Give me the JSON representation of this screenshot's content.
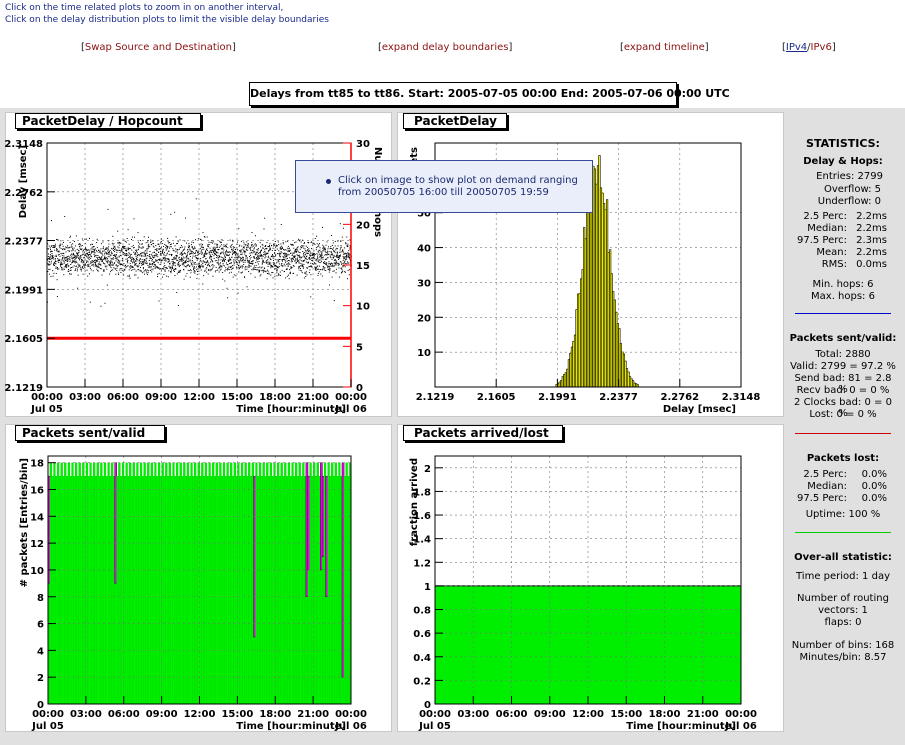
{
  "hints": [
    "Click on the time related plots to zoom in on another interval,",
    "Click on the delay distribution plots to limit the visible delay boundaries"
  ],
  "links": {
    "swap": "Swap Source and Destination",
    "expand_delay": "expand delay boundaries",
    "expand_timeline": "expand timeline",
    "ipv4": "IPv4",
    "ipv6": "IPv6"
  },
  "header": "Delays from tt85 to tt86.  Start: 2005-07-05 00:00  End: 2005-07-06 00:00 UTC",
  "tooltip": {
    "text": "Click on image to show plot on demand ranging from 20050705 16:00 till 20050705 19:59"
  },
  "chart_data": [
    {
      "type": "scatter",
      "title": "PacketDelay / Hopcount",
      "ylabel": "Delay [msec]",
      "y2label": "Number of hops",
      "xlabel": "Time [hour:minute]",
      "xticks": [
        "00:00",
        "03:00",
        "06:00",
        "09:00",
        "12:00",
        "15:00",
        "18:00",
        "21:00",
        "00:00"
      ],
      "x_start_label": "Jul 05",
      "x_end_label": "Jul 06",
      "yticks": [
        "2.1219",
        "2.1605",
        "2.1991",
        "2.2377",
        "2.2762",
        "2.3148"
      ],
      "ylim": [
        2.1219,
        2.3148
      ],
      "y2ticks": [
        "0",
        "5",
        "10",
        "15",
        "20",
        "25",
        "30"
      ],
      "y2lim": [
        0,
        30
      ],
      "delay_band": {
        "median": 2.2245,
        "spread": 0.0095
      },
      "hopcount_value": 6,
      "hop_color": "#ff0000"
    },
    {
      "type": "bar",
      "title": "PacketDelay",
      "ylabel": "# packets",
      "xlabel": "Delay [msec]",
      "xticks": [
        "2.1219",
        "2.1605",
        "2.1991",
        "2.2377",
        "2.2762",
        "2.3148"
      ],
      "xlim": [
        2.1219,
        2.3148
      ],
      "yticks": [
        "10",
        "20",
        "30",
        "40",
        "50"
      ],
      "ylim": [
        0,
        70
      ],
      "hist_peak": 67,
      "hist_center": 2.2239,
      "hist_sigma": 0.0085,
      "bar_color": "#ffff00"
    },
    {
      "type": "bar",
      "title": "Packets sent/valid",
      "ylabel": "# packets [Entries/bin]",
      "xlabel": "Time [hour:minute]",
      "xticks": [
        "00:00",
        "03:00",
        "06:00",
        "09:00",
        "12:00",
        "15:00",
        "18:00",
        "21:00",
        "00:00"
      ],
      "x_start_label": "Jul 05",
      "x_end_label": "Jul 06",
      "yticks": [
        "0",
        "2",
        "4",
        "6",
        "8",
        "10",
        "12",
        "14",
        "16",
        "18"
      ],
      "ylim": [
        0,
        18.5
      ],
      "bins": 168,
      "sent_alternating": [
        17,
        18
      ],
      "valid_drops": [
        {
          "bin": 0,
          "value": 9
        },
        {
          "bin": 37,
          "value": 9
        },
        {
          "bin": 114,
          "value": 5
        },
        {
          "bin": 143,
          "value": 8
        },
        {
          "bin": 144,
          "value": 10
        },
        {
          "bin": 151,
          "value": 10
        },
        {
          "bin": 152,
          "value": 11
        },
        {
          "bin": 154,
          "value": 8
        },
        {
          "bin": 163,
          "value": 2
        }
      ],
      "sent_color": "#00a000",
      "valid_color": "#00ee00",
      "diff_color": "#ee00ee"
    },
    {
      "type": "area",
      "title": "Packets arrived/lost",
      "ylabel": "fraction arrived",
      "xlabel": "Time [hour:minute]",
      "xticks": [
        "00:00",
        "03:00",
        "06:00",
        "09:00",
        "12:00",
        "15:00",
        "18:00",
        "21:00",
        "00:00"
      ],
      "x_start_label": "Jul 05",
      "x_end_label": "Jul 06",
      "yticks": [
        "0",
        "0.2",
        "0.4",
        "0.6",
        "0.8",
        "1",
        "1.2",
        "1.4",
        "1.6",
        "1.8",
        "2"
      ],
      "ylim": [
        0,
        2.1
      ],
      "value": 1,
      "fill_color": "#00ee00"
    }
  ],
  "stats": {
    "title": "STATISTICS:",
    "s1_title": "Delay & Hops:",
    "entries": "Entries: 2799",
    "overflow": "Overflow: 5",
    "underflow": "Underflow: 0",
    "rows1": [
      {
        "k": "2.5 Perc:",
        "v": "2.2ms"
      },
      {
        "k": "Median:",
        "v": "2.2ms"
      },
      {
        "k": "97.5 Perc:",
        "v": "2.3ms"
      },
      {
        "k": "Mean:",
        "v": "2.2ms"
      },
      {
        "k": "RMS:",
        "v": "0.0ms"
      }
    ],
    "min_hops": "Min. hops: 6",
    "max_hops": "Max. hops: 6",
    "s2_title": "Packets sent/valid:",
    "total": "Total: 2880",
    "valid": "Valid: 2799 = 97.2 %",
    "send_bad": "Send bad: 81 = 2.8 %",
    "recv_bad": "Recv bad: 0 = 0 %",
    "clocks_bad": "2 Clocks bad: 0 = 0 %",
    "lost": "Lost: 0 = 0 %",
    "s3_title": "Packets lost:",
    "rows3": [
      {
        "k": "2.5 Perc:",
        "v": "0.0%"
      },
      {
        "k": "Median:",
        "v": "0.0%"
      },
      {
        "k": "97.5 Perc:",
        "v": "0.0%"
      }
    ],
    "uptime": "Uptime: 100 %",
    "s4_title": "Over-all statistic:",
    "time_period": "Time period: 1 day",
    "routing1": "Number of routing",
    "routing2": "vectors: 1",
    "flaps": "flaps: 0",
    "num_bins": "Number of bins: 168",
    "minutes_bin": "Minutes/bin: 8.57",
    "sep_colors": [
      "#0000cc",
      "#cc0000",
      "#00cc00"
    ]
  }
}
